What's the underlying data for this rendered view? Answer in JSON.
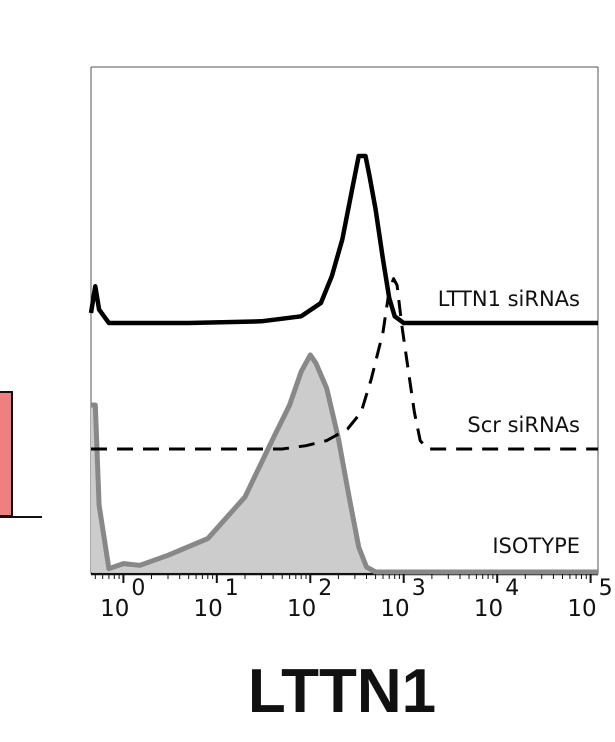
{
  "chart_data": {
    "type": "histogram-overlay",
    "title": "",
    "xlabel": "LTTN1",
    "ylabel": "",
    "x_scale": "log",
    "xlim": [
      0.45,
      120000
    ],
    "x_ticks": [
      {
        "value": 1,
        "base": "10",
        "exp": "0"
      },
      {
        "value": 10,
        "base": "10",
        "exp": "1"
      },
      {
        "value": 100,
        "base": "10",
        "exp": "2"
      },
      {
        "value": 1000,
        "base": "10",
        "exp": "3"
      },
      {
        "value": 10000,
        "base": "10",
        "exp": "4"
      },
      {
        "value": 100000,
        "base": "10",
        "exp": "5"
      }
    ],
    "grid": false,
    "series": [
      {
        "name": "LTTN1 siRNAs",
        "style": "solid",
        "color": "#000000",
        "offset_level": 2,
        "points": [
          [
            0.45,
            6
          ],
          [
            0.5,
            22
          ],
          [
            0.55,
            8
          ],
          [
            0.7,
            0
          ],
          [
            5,
            0
          ],
          [
            30,
            1
          ],
          [
            80,
            4
          ],
          [
            130,
            12
          ],
          [
            170,
            28
          ],
          [
            220,
            50
          ],
          [
            280,
            80
          ],
          [
            330,
            100
          ],
          [
            390,
            100
          ],
          [
            430,
            88
          ],
          [
            500,
            68
          ],
          [
            600,
            38
          ],
          [
            700,
            15
          ],
          [
            800,
            4
          ],
          [
            1000,
            0
          ],
          [
            120000,
            0
          ]
        ]
      },
      {
        "name": "Scr siRNAs",
        "style": "dashed",
        "color": "#000000",
        "offset_level": 1,
        "points": [
          [
            0.45,
            0
          ],
          [
            50,
            0
          ],
          [
            90,
            2
          ],
          [
            150,
            5
          ],
          [
            250,
            12
          ],
          [
            350,
            22
          ],
          [
            450,
            42
          ],
          [
            600,
            70
          ],
          [
            700,
            95
          ],
          [
            780,
            102
          ],
          [
            850,
            98
          ],
          [
            950,
            75
          ],
          [
            1100,
            50
          ],
          [
            1300,
            22
          ],
          [
            1500,
            5
          ],
          [
            1800,
            0
          ],
          [
            120000,
            0
          ]
        ]
      },
      {
        "name": "ISOTYPE",
        "style": "filled",
        "color": "#888888",
        "fill": "#cccccc",
        "offset_level": 0,
        "points": [
          [
            0.45,
            100
          ],
          [
            0.5,
            100
          ],
          [
            0.55,
            40
          ],
          [
            0.7,
            2
          ],
          [
            1,
            5
          ],
          [
            1.5,
            4
          ],
          [
            3,
            10
          ],
          [
            8,
            20
          ],
          [
            20,
            45
          ],
          [
            40,
            80
          ],
          [
            60,
            100
          ],
          [
            80,
            120
          ],
          [
            100,
            130
          ],
          [
            115,
            125
          ],
          [
            150,
            110
          ],
          [
            200,
            80
          ],
          [
            260,
            45
          ],
          [
            330,
            15
          ],
          [
            400,
            3
          ],
          [
            500,
            0
          ],
          [
            120000,
            0
          ]
        ]
      }
    ],
    "legend": "inline-right"
  },
  "colors": {
    "left_panel_fill": "#f08080",
    "left_panel_stroke": "#111111",
    "frame": "#555555"
  }
}
